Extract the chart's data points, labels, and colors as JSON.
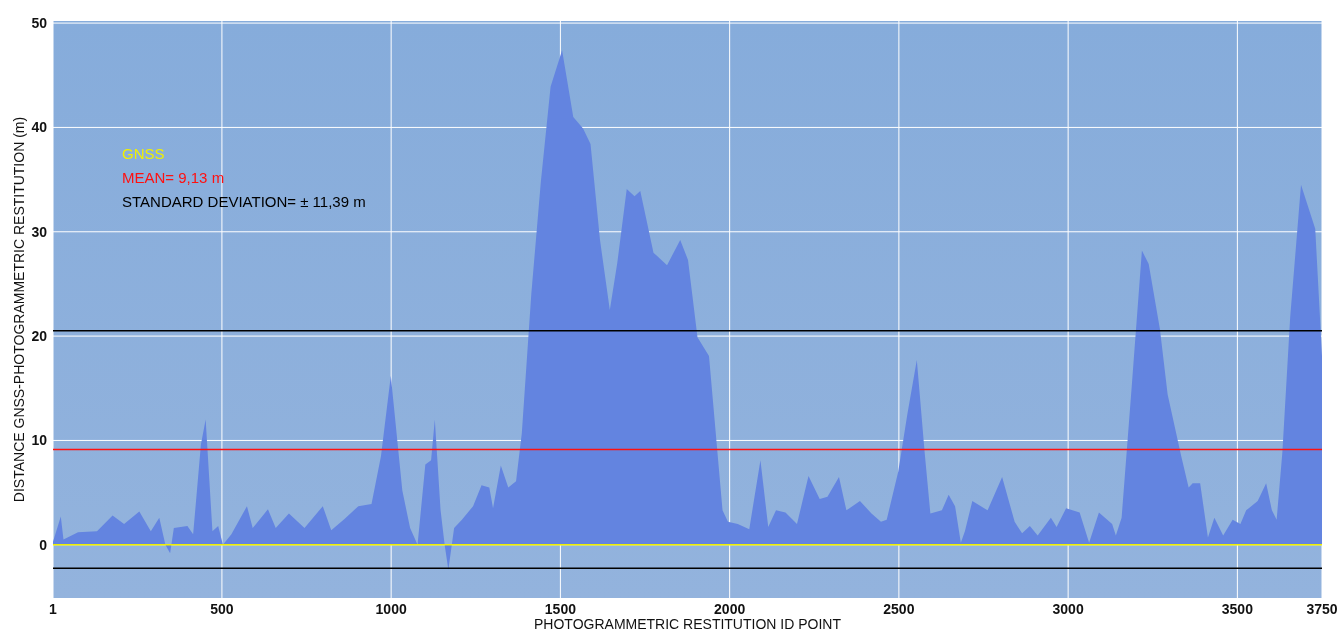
{
  "chart_data": {
    "type": "area",
    "xlabel": "PHOTOGRAMMETRIC RESTITUTION ID POINT",
    "ylabel": "DISTANCE GNSS-PHOTOGRAMMETRIC RESTITUTION  (m)",
    "xlim": [
      1,
      3750
    ],
    "ylim": [
      -5.1,
      50.2
    ],
    "xticks": [
      1,
      500,
      1000,
      1500,
      2000,
      2500,
      3000,
      3500,
      3750
    ],
    "yticks": [
      0,
      10,
      20,
      30,
      40,
      50
    ],
    "grid": true,
    "series": [
      {
        "color": "#6384e0",
        "x": [
          1,
          24,
          32,
          75,
          131,
          177,
          211,
          256,
          290,
          315,
          333,
          347,
          358,
          398,
          415,
          438,
          452,
          472,
          489,
          503,
          528,
          574,
          591,
          636,
          659,
          698,
          744,
          798,
          823,
          863,
          903,
          942,
          970,
          999,
          1033,
          1056,
          1078,
          1101,
          1118,
          1129,
          1146,
          1158,
          1169,
          1186,
          1209,
          1242,
          1267,
          1290,
          1301,
          1324,
          1346,
          1369,
          1386,
          1414,
          1442,
          1471,
          1505,
          1538,
          1567,
          1589,
          1617,
          1646,
          1668,
          1696,
          1719,
          1736,
          1775,
          1815,
          1854,
          1877,
          1905,
          1939,
          1979,
          1995,
          2024,
          2058,
          2091,
          2114,
          2137,
          2165,
          2199,
          2233,
          2266,
          2289,
          2323,
          2345,
          2385,
          2419,
          2447,
          2464,
          2498,
          2525,
          2553,
          2576,
          2593,
          2627,
          2647,
          2666,
          2683,
          2695,
          2717,
          2762,
          2805,
          2842,
          2864,
          2887,
          2910,
          2949,
          2966,
          2994,
          3034,
          3062,
          3091,
          3130,
          3141,
          3158,
          3187,
          3218,
          3238,
          3271,
          3294,
          3334,
          3356,
          3368,
          3390,
          3413,
          3432,
          3458,
          3486,
          3509,
          3526,
          3560,
          3585,
          3602,
          3616,
          3633,
          3656,
          3688,
          3730,
          3750
        ],
        "values": [
          0.3,
          2.7,
          0.5,
          1.2,
          1.3,
          2.8,
          2,
          3.2,
          1.3,
          2.6,
          0,
          -0.8,
          1.6,
          1.8,
          1,
          9.6,
          12,
          1.3,
          1.8,
          0,
          1,
          3.7,
          1.6,
          3.4,
          1.6,
          3,
          1.6,
          3.7,
          1.4,
          2.5,
          3.7,
          3.9,
          8.5,
          16.2,
          5.2,
          1.6,
          0,
          7.7,
          8.1,
          12,
          3.3,
          0,
          -2.4,
          1.6,
          2.4,
          3.7,
          5.7,
          5.5,
          3.5,
          7.6,
          5.5,
          6.1,
          10.7,
          24,
          34.7,
          43.9,
          47.4,
          41,
          39.9,
          38.4,
          29.2,
          22.5,
          27,
          34.1,
          33.4,
          33.9,
          28,
          26.8,
          29.2,
          27.3,
          19.9,
          18.1,
          3.3,
          2.2,
          2,
          1.5,
          8.1,
          1.7,
          3.3,
          3.1,
          2,
          6.6,
          4.4,
          4.6,
          6.5,
          3.3,
          4.2,
          3,
          2.2,
          2.4,
          7,
          12.5,
          17.7,
          8.9,
          3,
          3.3,
          4.8,
          3.7,
          0.2,
          1.3,
          4.2,
          3.3,
          6.5,
          2.2,
          1.1,
          1.8,
          0.9,
          2.6,
          1.7,
          3.5,
          3.1,
          0.2,
          3.1,
          2,
          0.9,
          2.6,
          14.8,
          28.2,
          26.9,
          20.7,
          14.4,
          8.5,
          5.5,
          5.9,
          5.9,
          0.7,
          2.6,
          0.9,
          2.4,
          2,
          3.3,
          4.2,
          5.9,
          3.3,
          2.4,
          8.9,
          21.8,
          34.5,
          30.3,
          18.1
        ]
      }
    ],
    "ref_lines": [
      {
        "axis": "y",
        "value": 0,
        "label": "GNSS",
        "color": "#f0f000"
      },
      {
        "axis": "y",
        "value": 9.13,
        "label": "MEAN= 9,13 m",
        "color": "#ff1010"
      },
      {
        "axis": "y",
        "value": 20.52,
        "label": "STANDARD DEVIATION=  ± 11,39 m",
        "color": "#000000"
      },
      {
        "axis": "y",
        "value": -2.26,
        "label": null,
        "color": "#000000"
      }
    ]
  }
}
